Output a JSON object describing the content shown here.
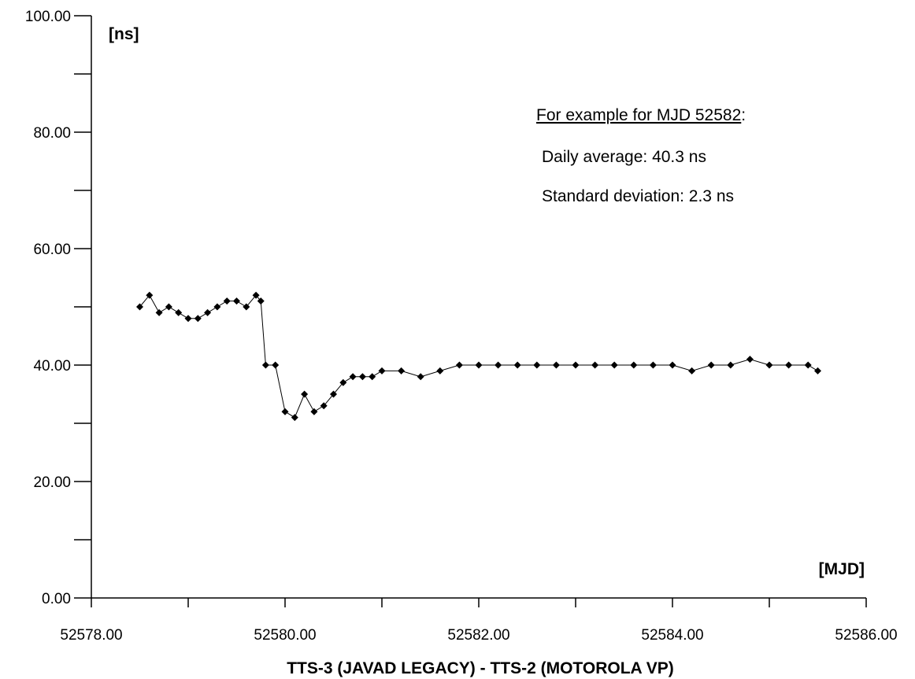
{
  "chart_data": {
    "type": "line",
    "title": "TTS-3 (JAVAD LEGACY) - TTS-2 (MOTOROLA VP)",
    "xlabel": "[MJD]",
    "ylabel": "[ns]",
    "xlim": [
      52578.0,
      52586.0
    ],
    "ylim": [
      0.0,
      100.0
    ],
    "x_ticks": [
      52578.0,
      52579.0,
      52580.0,
      52581.0,
      52582.0,
      52583.0,
      52584.0,
      52585.0,
      52586.0
    ],
    "x_tick_labels": [
      "52578.00",
      "52580.00",
      "52582.00",
      "52584.00",
      "52586.00"
    ],
    "y_ticks": [
      0,
      10,
      20,
      30,
      40,
      50,
      60,
      70,
      80,
      90,
      100
    ],
    "y_tick_labels": [
      "0.00",
      "20.00",
      "40.00",
      "60.00",
      "80.00",
      "100.00"
    ],
    "grid": false,
    "marker": "diamond",
    "annotations": {
      "heading_underlined": "For example for MJD 52582",
      "heading_suffix": ":",
      "line1": "Daily average: 40.3 ns",
      "line2": "Standard deviation: 2.3 ns"
    },
    "series": [
      {
        "x": [
          52578.5,
          52578.6,
          52578.7,
          52578.8,
          52578.9,
          52579.0,
          52579.1,
          52579.2,
          52579.3,
          52579.4,
          52579.5,
          52579.6,
          52579.7,
          52579.75,
          52579.8,
          52579.9,
          52580.0,
          52580.1,
          52580.2,
          52580.3,
          52580.4,
          52580.5,
          52580.6,
          52580.7,
          52580.8,
          52580.9,
          52581.0,
          52581.2,
          52581.4,
          52581.6,
          52581.8,
          52582.0,
          52582.2,
          52582.4,
          52582.6,
          52582.8,
          52583.0,
          52583.2,
          52583.4,
          52583.6,
          52583.8,
          52584.0,
          52584.2,
          52584.4,
          52584.6,
          52584.8,
          52585.0,
          52585.2,
          52585.4,
          52585.5
        ],
        "y": [
          50,
          52,
          49,
          50,
          49,
          48,
          48,
          49,
          50,
          51,
          51,
          50,
          52,
          51,
          40,
          40,
          32,
          31,
          35,
          32,
          33,
          35,
          37,
          38,
          38,
          38,
          39,
          39,
          38,
          39,
          40,
          40,
          40,
          40,
          40,
          40,
          40,
          40,
          40,
          40,
          40,
          40,
          39,
          40,
          40,
          41,
          40,
          40,
          40,
          39
        ]
      }
    ]
  }
}
